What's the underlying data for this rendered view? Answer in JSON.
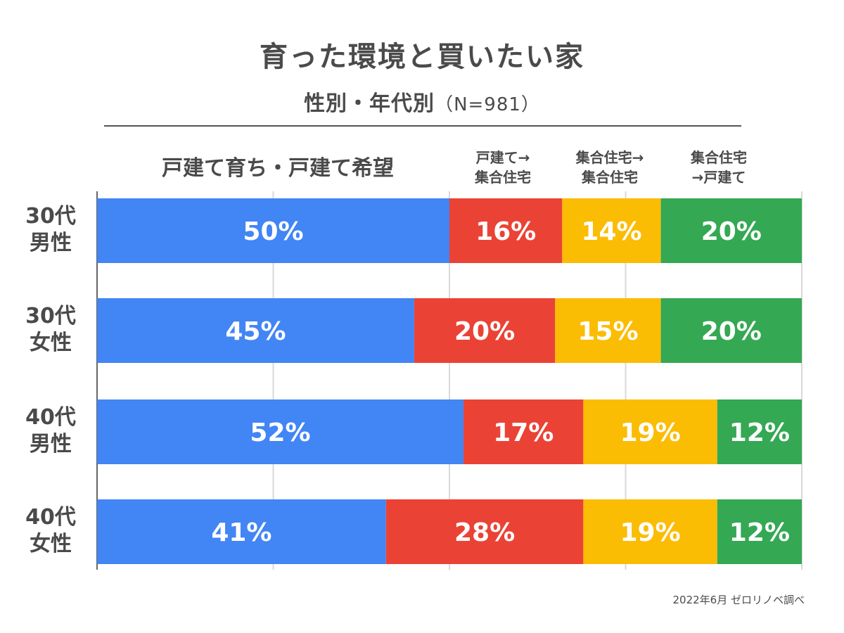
{
  "title": "育った環境と買いたい家",
  "subtitle": "性別・年代別",
  "sample_size": "（N=981）",
  "credit": "2022年6月 ゼロリノベ調べ",
  "chart_data": {
    "type": "bar",
    "orientation": "horizontal",
    "stacked": true,
    "title": "育った環境と買いたい家",
    "subtitle": "性別・年代別（N=981）",
    "categories": [
      "30代\n男性",
      "30代\n女性",
      "40代\n男性",
      "40代\n女性"
    ],
    "series": [
      {
        "name": "戸建て育ち・戸建て希望",
        "color": "#4285f4",
        "values": [
          50,
          45,
          52,
          41
        ]
      },
      {
        "name": "戸建て→\n集合住宅",
        "color": "#ea4335",
        "values": [
          16,
          20,
          17,
          28
        ]
      },
      {
        "name": "集合住宅→\n集合住宅",
        "color": "#fbbc04",
        "values": [
          14,
          15,
          19,
          19
        ]
      },
      {
        "name": "集合住宅\n→戸建て",
        "color": "#34a853",
        "values": [
          20,
          20,
          12,
          12
        ]
      }
    ],
    "value_suffix": "%",
    "xlim": [
      0,
      100
    ],
    "grid": true,
    "grid_color": "#d9d9d9",
    "axis_color": "#666666"
  }
}
